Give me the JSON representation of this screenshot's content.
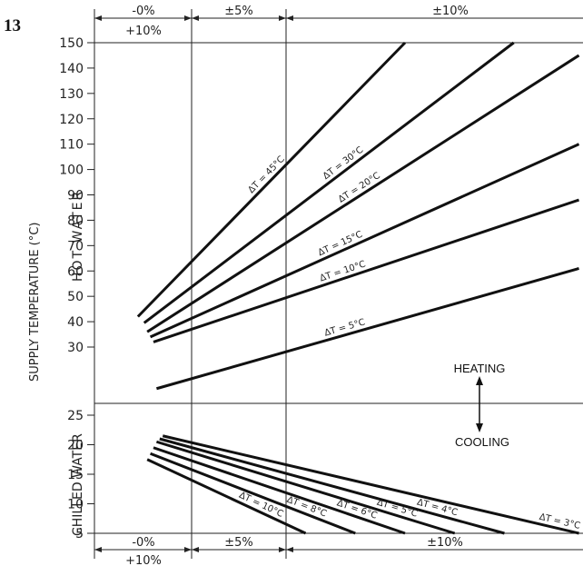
{
  "figure_number": "13",
  "chart_data": {
    "type": "line",
    "ylabel": "SUPPLY TEMPERATURE (°C)",
    "regions": {
      "hot": "HOT WATER",
      "chilled": "CHILLED WATER"
    },
    "modes": {
      "heating": "HEATING",
      "cooling": "COOLING"
    },
    "tolerance_labels": {
      "zone1_top": "-0%",
      "zone1_bottom": "+10%",
      "zone2": "±5%",
      "zone3": "±10%"
    },
    "y_ticks": [
      5,
      10,
      15,
      20,
      25,
      30,
      40,
      50,
      60,
      70,
      80,
      90,
      100,
      110,
      120,
      130,
      140,
      150
    ],
    "heating_series": [
      {
        "name": "ΔT = 45°C",
        "points": [
          [
            0.14,
            42
          ],
          [
            1.0,
            150
          ]
        ]
      },
      {
        "name": "ΔT = 30°C",
        "points": [
          [
            0.16,
            39.5
          ],
          [
            1.35,
            150
          ]
        ]
      },
      {
        "name": "ΔT = 20°C",
        "points": [
          [
            0.17,
            36
          ],
          [
            1.56,
            145
          ]
        ]
      },
      {
        "name": "ΔT = 15°C",
        "points": [
          [
            0.18,
            34
          ],
          [
            1.56,
            110
          ]
        ]
      },
      {
        "name": "ΔT = 10°C",
        "points": [
          [
            0.19,
            32
          ],
          [
            1.56,
            88
          ]
        ]
      },
      {
        "name": "ΔT = 5°C",
        "points": [
          [
            0.2,
            29.5
          ],
          [
            1.56,
            61
          ]
        ]
      }
    ],
    "cooling_series": [
      {
        "name": "ΔT = 10°C",
        "points": [
          [
            0.17,
            17.5
          ],
          [
            0.68,
            5
          ]
        ]
      },
      {
        "name": "ΔT = 8°C",
        "points": [
          [
            0.18,
            18.5
          ],
          [
            0.84,
            5
          ]
        ]
      },
      {
        "name": "ΔT = 6°C",
        "points": [
          [
            0.19,
            19.5
          ],
          [
            1.0,
            5
          ]
        ]
      },
      {
        "name": "ΔT = 5°C",
        "points": [
          [
            0.2,
            20.5
          ],
          [
            1.16,
            5
          ]
        ]
      },
      {
        "name": "ΔT = 4°C",
        "points": [
          [
            0.21,
            21
          ],
          [
            1.32,
            5
          ]
        ]
      },
      {
        "name": "ΔT = 3°C",
        "points": [
          [
            0.22,
            21.5
          ],
          [
            1.56,
            5
          ]
        ]
      }
    ]
  }
}
